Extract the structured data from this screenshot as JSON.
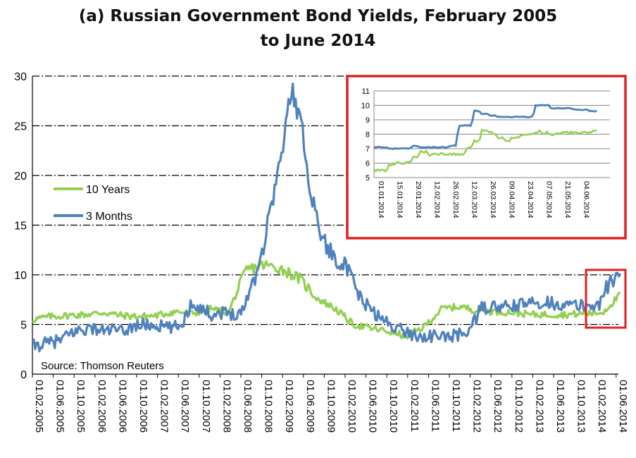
{
  "title": {
    "line1": "(a) Russian Government Bond Yields, February 2005",
    "line2": "to June 2014"
  },
  "source": "Source: Thomson Reuters",
  "colors": {
    "ten_year": "#92d050",
    "three_month": "#4f81bd",
    "highlight": "#e02020"
  },
  "chart_data": [
    {
      "type": "line",
      "grid": "dash-dot horizontal",
      "legend_position": "left",
      "ylim": [
        0,
        30
      ],
      "yticks": [
        "0",
        "5",
        "10",
        "15",
        "20",
        "25",
        "30"
      ],
      "xtick_labels": [
        "01.02.2005",
        "01.06.2005",
        "01.10.2005",
        "01.02.2006",
        "01.06.2006",
        "01.10.2006",
        "01.02.2007",
        "01.06.2007",
        "01.10.2007",
        "01.02.2008",
        "01.06.2008",
        "01.10.2008",
        "01.02.2009",
        "01.06.2009",
        "01.10.2009",
        "01.02.2010",
        "01.06.2010",
        "01.10.2010",
        "01.02.2011",
        "01.06.2011",
        "01.10.2011",
        "01.02.2012",
        "01.06.2012",
        "01.10.2012",
        "01.02.2013",
        "01.06.2013",
        "01.10.2013",
        "01.02.2014",
        "01.06.2014"
      ],
      "series": [
        {
          "name": "10 Years",
          "values": [
            5.5,
            5.8,
            5.9,
            6.0,
            6.2,
            5.9,
            5.8,
            5.9,
            6.3,
            6.1,
            6.6,
            6.2,
            10.5,
            11,
            10.6,
            9.6,
            7.6,
            6.6,
            5.0,
            4.6,
            4.3,
            3.8,
            4.8,
            6.6,
            6.8,
            6.4,
            6.3,
            6.2,
            6.0,
            6.0,
            6.0,
            6.1,
            6.2,
            8.0
          ]
        },
        {
          "name": "3 Months",
          "values": [
            2.8,
            3.0,
            3.2,
            3.5,
            4.2,
            4.5,
            4.6,
            4.4,
            4.5,
            4.2,
            4.8,
            5.0,
            4.9,
            4.8,
            4.6,
            5.0,
            7.2,
            6.6,
            6.0,
            6.2,
            6.1,
            6.2,
            9,
            12,
            17.3,
            22,
            28.9,
            25,
            18,
            14,
            12,
            11.5,
            9.5,
            7.5,
            6.5,
            5.5,
            5.0,
            4.5,
            4.0,
            3.8,
            3.8,
            3.8,
            3.8,
            4.0,
            4.6,
            6.6,
            6.8,
            6.7,
            6.8,
            7.0,
            7.1,
            7.3,
            7.2,
            7.0,
            6.9,
            6.9,
            6.9,
            7.1,
            9.5,
            9.8
          ]
        }
      ]
    },
    {
      "type": "line",
      "grid": "horizontal",
      "ylim": [
        5,
        11
      ],
      "yticks": [
        "5",
        "6",
        "7",
        "8",
        "9",
        "10",
        "11"
      ],
      "xtick_labels": [
        "01.01.2014",
        "15.01.2014",
        "29.01.2014",
        "12.02.2014",
        "26.02.2014",
        "12.03.2014",
        "26.03.2014",
        "09.04.2014",
        "23.04.2014",
        "07.05.2014",
        "21.05.2014",
        "04.06.2014"
      ],
      "series": [
        {
          "name": "10 Years",
          "values": [
            5.5,
            5.5,
            5.9,
            6.0,
            6.0,
            6.4,
            6.8,
            6.6,
            6.6,
            6.6,
            6.6,
            6.6,
            7.0,
            7.5,
            8.3,
            8.1,
            7.8,
            7.6,
            7.8,
            7.9,
            8.0,
            8.2,
            8.1,
            8.0,
            8.1,
            8.1,
            8.1,
            8.1,
            8.2,
            8.2
          ]
        },
        {
          "name": "3 Months",
          "values": [
            7.1,
            7.1,
            7.0,
            7.0,
            7.0,
            7.2,
            7.1,
            7.1,
            7.1,
            7.1,
            7.2,
            8.6,
            8.6,
            9.6,
            9.4,
            9.3,
            9.2,
            9.2,
            9.2,
            9.2,
            9.2,
            10.0,
            10.0,
            9.8,
            9.8,
            9.8,
            9.7,
            9.7,
            9.6,
            9.6
          ]
        }
      ]
    }
  ]
}
